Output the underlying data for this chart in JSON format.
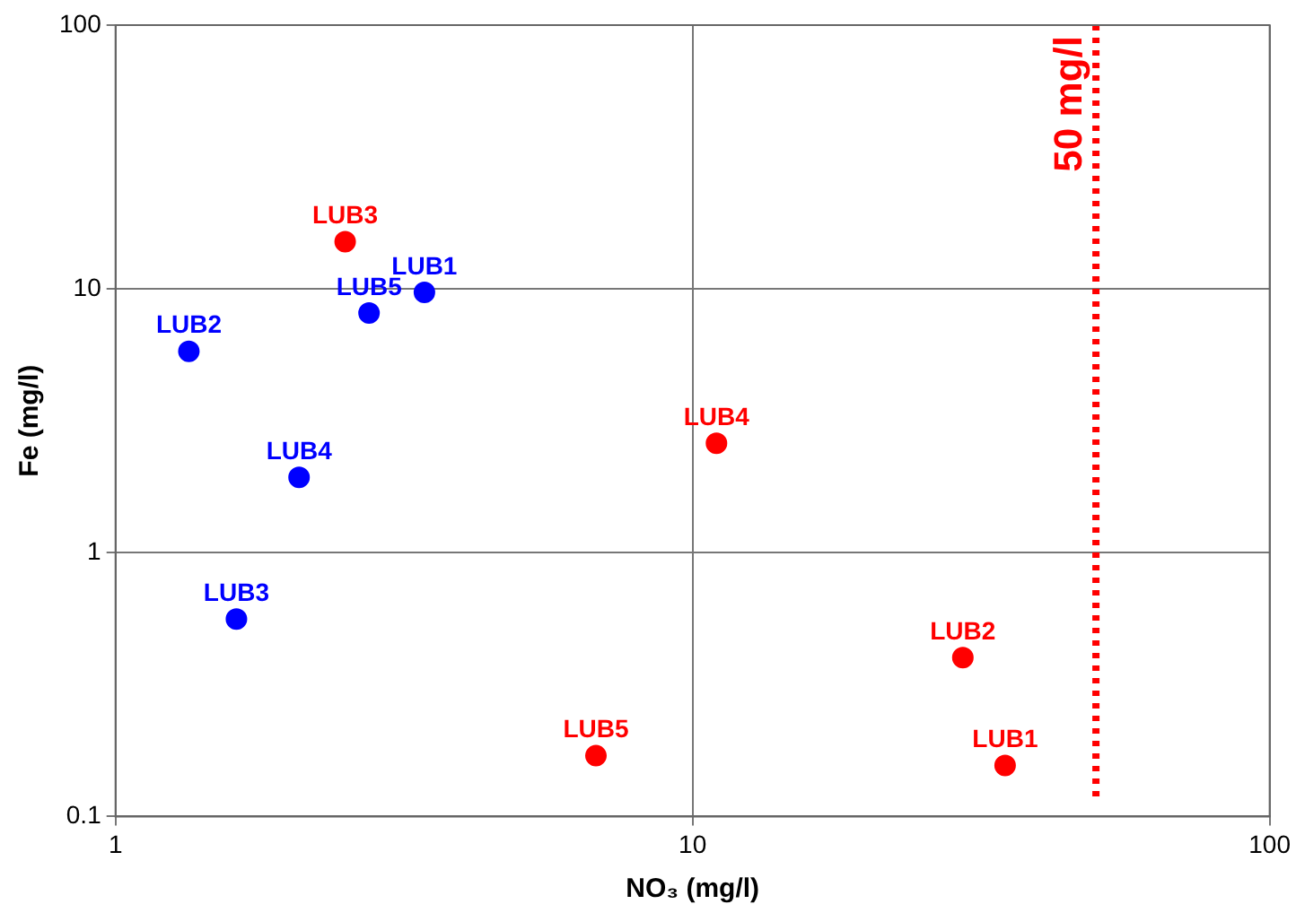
{
  "chart_data": {
    "type": "scatter",
    "xlabel": "NO₃ (mg/l)",
    "ylabel": "Fe (mg/l)",
    "log": "xy",
    "grid": true,
    "legend": false,
    "marker": "circle",
    "xlim": [
      1,
      100
    ],
    "xticks": [
      1,
      10,
      100
    ],
    "ylim": [
      0.1,
      100
    ],
    "yticks": [
      0.1,
      1,
      10,
      100
    ],
    "series": [
      {
        "color": "#0000ff",
        "x": [
          3.43,
          1.34,
          1.62,
          2.08,
          2.75
        ],
        "values": [
          9.7,
          5.8,
          0.56,
          1.93,
          8.1
        ],
        "value_labels": [
          "LUB1",
          "LUB2",
          "LUB3",
          "LUB4",
          "LUB5"
        ]
      },
      {
        "color": "#ff0000",
        "x": [
          34.8,
          29.4,
          2.5,
          11.0,
          6.8
        ],
        "values": [
          0.156,
          0.4,
          15.1,
          2.6,
          0.17
        ],
        "value_labels": [
          "LUB1",
          "LUB2",
          "LUB3",
          "LUB4",
          "LUB5"
        ]
      }
    ],
    "ref_lines": [
      {
        "axis": "x",
        "value": 50,
        "label": "50 mg/l",
        "color": "#ff0000",
        "line_style": "dotted"
      }
    ]
  }
}
